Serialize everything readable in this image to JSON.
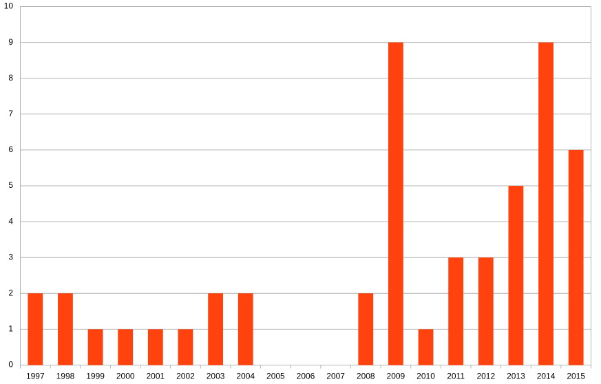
{
  "chart_data": {
    "type": "bar",
    "categories": [
      "1997",
      "1998",
      "1999",
      "2000",
      "2001",
      "2002",
      "2003",
      "2004",
      "2005",
      "2006",
      "2007",
      "2008",
      "2009",
      "2010",
      "2011",
      "2012",
      "2013",
      "2014",
      "2015"
    ],
    "values": [
      2,
      2,
      1,
      1,
      1,
      1,
      2,
      2,
      0,
      0,
      0,
      2,
      9,
      1,
      3,
      3,
      5,
      9,
      6
    ],
    "color": "#ff420e",
    "ylim": [
      0,
      10
    ],
    "yticks": [
      0,
      1,
      2,
      3,
      4,
      5,
      6,
      7,
      8,
      9,
      10
    ],
    "grid": true
  }
}
